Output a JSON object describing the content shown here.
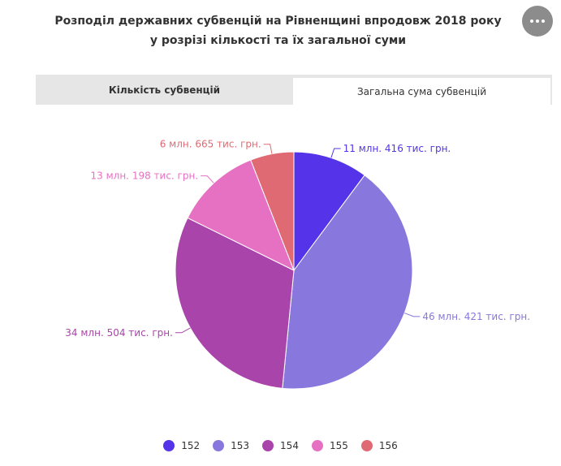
{
  "title": {
    "line1": "Розподіл державних субвенцій на Рівненщині впродовж 2018 року",
    "line2": "у розрізі кількості та їх загальної суми"
  },
  "menu": {
    "icon": "more-horizontal-icon"
  },
  "tabs": [
    {
      "label": "Кількість субвенцій",
      "active": false
    },
    {
      "label": "Загальна сума субвенцій",
      "active": true
    }
  ],
  "chart_data": {
    "type": "pie",
    "unit": "грн.",
    "slices": [
      {
        "name": "152",
        "value": 11416,
        "label": "11 млн. 416 тис. грн.",
        "color": "#5533e8"
      },
      {
        "name": "153",
        "value": 46421,
        "label": "46 млн. 421 тис. грн.",
        "color": "#8877dd"
      },
      {
        "name": "154",
        "value": 34504,
        "label": "34 млн. 504 тис. грн.",
        "color": "#a944aa"
      },
      {
        "name": "155",
        "value": 13198,
        "label": "13 млн. 198 тис. грн.",
        "color": "#e671c3"
      },
      {
        "name": "156",
        "value": 6665,
        "label": "6 млн. 665 тис. грн.",
        "color": "#e06a73"
      }
    ],
    "legend_position": "bottom"
  }
}
